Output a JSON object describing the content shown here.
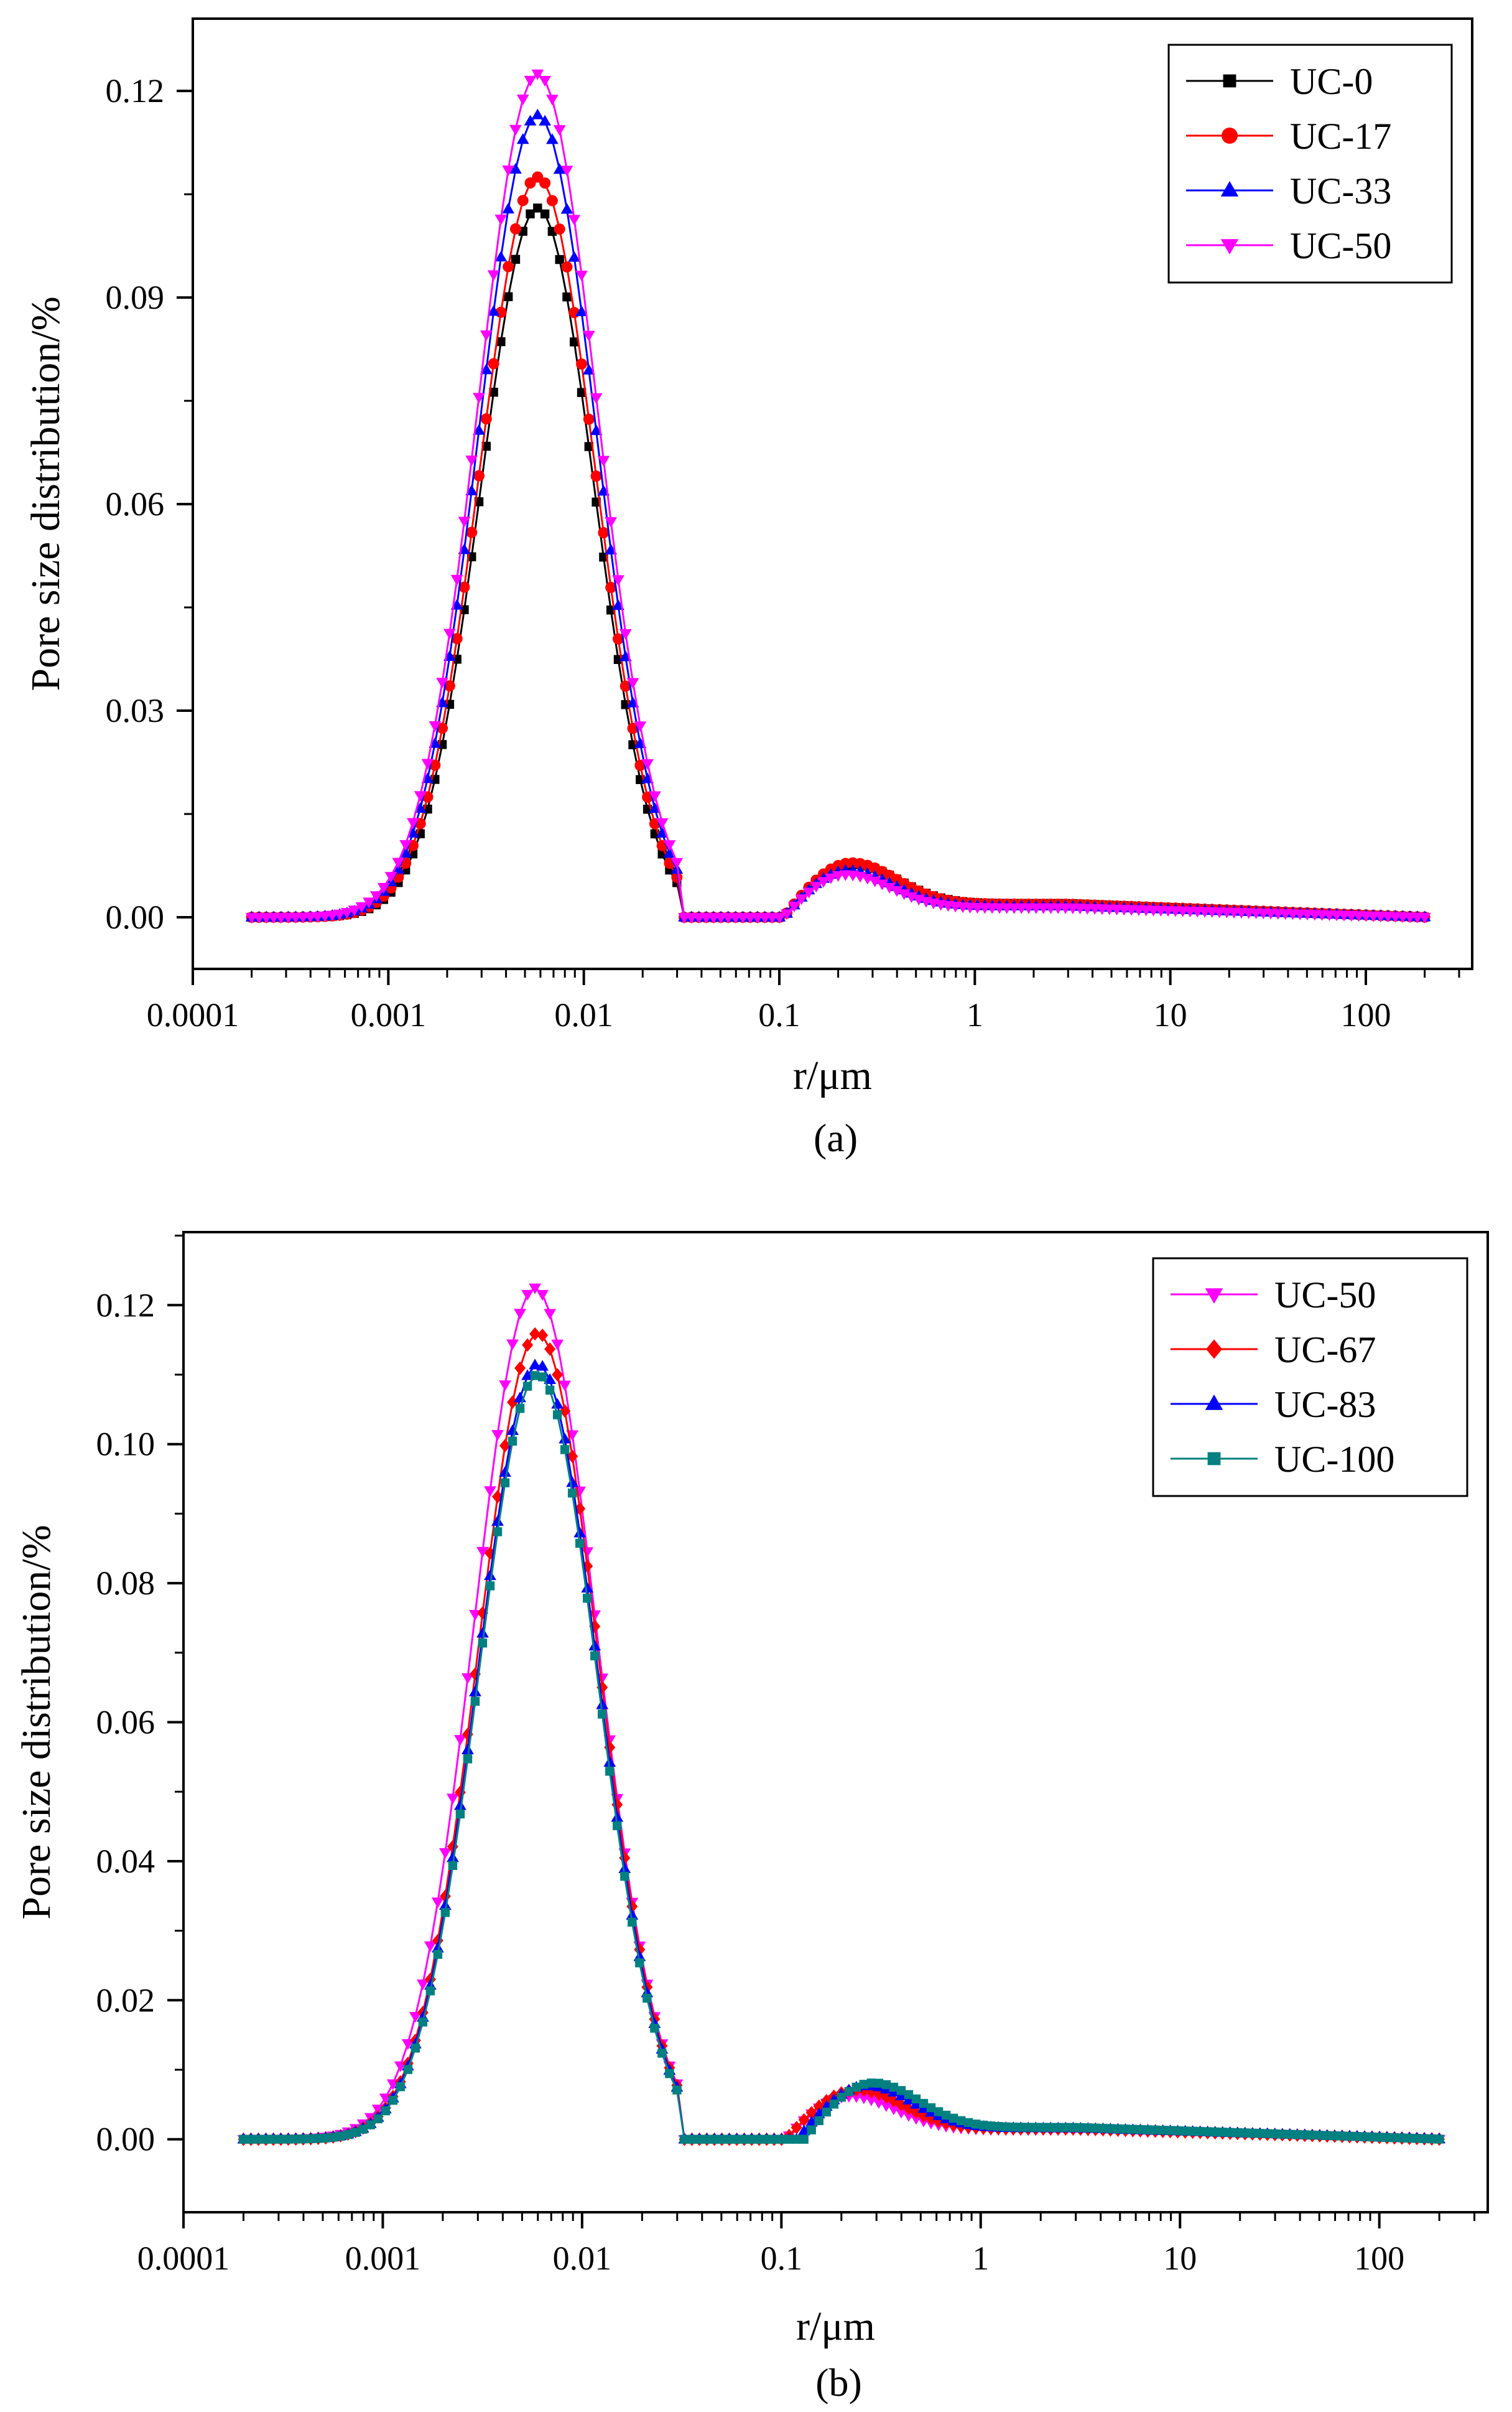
{
  "chart_data": [
    {
      "type": "line",
      "caption": "(a)",
      "xlabel": "r/μm",
      "ylabel": "Pore size distribution/%",
      "xscale": "log",
      "xlim": [
        0.0001,
        350
      ],
      "ylim": [
        -0.0075,
        0.1305
      ],
      "xticks": [
        0.0001,
        0.001,
        0.01,
        0.1,
        1,
        10,
        100
      ],
      "xtick_labels": [
        "0.0001",
        "0.001",
        "0.01",
        "0.1",
        "1",
        "10",
        "100"
      ],
      "yticks": [
        0,
        0.03,
        0.06,
        0.09,
        0.12
      ],
      "ytick_labels": [
        "0.00",
        "0.03",
        "0.06",
        "0.09",
        "0.12"
      ],
      "legend_position": "top-right",
      "series": [
        {
          "name": "UC-0",
          "color": "#000000",
          "marker": "square",
          "peak1": 0.103,
          "peak1_r": 0.0058,
          "peak1_sigma": 0.29,
          "peak2": 0.0077,
          "peak2_r": 0.24,
          "tail": 0.002,
          "onset": 0.105
        },
        {
          "name": "UC-17",
          "color": "#ff0000",
          "marker": "circle",
          "peak1": 0.1075,
          "peak1_r": 0.0058,
          "peak1_sigma": 0.295,
          "peak2": 0.0079,
          "peak2_r": 0.235,
          "tail": 0.0019,
          "onset": 0.105
        },
        {
          "name": "UC-33",
          "color": "#0000ff",
          "marker": "triangle-up",
          "peak1": 0.1165,
          "peak1_r": 0.0058,
          "peak1_sigma": 0.3,
          "peak2": 0.0068,
          "peak2_r": 0.225,
          "tail": 0.0016,
          "onset": 0.105
        },
        {
          "name": "UC-50",
          "color": "#ff00ff",
          "marker": "triangle-down",
          "peak1": 0.1225,
          "peak1_r": 0.0058,
          "peak1_sigma": 0.305,
          "peak2": 0.0062,
          "peak2_r": 0.22,
          "tail": 0.0014,
          "onset": 0.105
        }
      ]
    },
    {
      "type": "line",
      "caption": "(b)",
      "xlabel": "r/μm",
      "ylabel": "Pore size distribution/%",
      "xscale": "log",
      "xlim": [
        0.0001,
        350
      ],
      "ylim": [
        -0.0105,
        0.1305
      ],
      "xticks": [
        0.0001,
        0.001,
        0.01,
        0.1,
        1,
        10,
        100
      ],
      "xtick_labels": [
        "0.0001",
        "0.001",
        "0.01",
        "0.1",
        "1",
        "10",
        "100"
      ],
      "yticks": [
        0,
        0.02,
        0.04,
        0.06,
        0.08,
        0.1,
        0.12
      ],
      "ytick_labels": [
        "0.00",
        "0.02",
        "0.04",
        "0.06",
        "0.08",
        "0.10",
        "0.12"
      ],
      "legend_position": "top-right",
      "series": [
        {
          "name": "UC-50",
          "color": "#ff00ff",
          "marker": "triangle-down",
          "peak1": 0.1225,
          "peak1_r": 0.0058,
          "peak1_sigma": 0.305,
          "peak2": 0.0062,
          "peak2_r": 0.22,
          "tail": 0.0014,
          "onset": 0.105
        },
        {
          "name": "UC-67",
          "color": "#ff0000",
          "marker": "diamond",
          "peak1": 0.116,
          "peak1_r": 0.006,
          "peak1_sigma": 0.3,
          "peak2": 0.0071,
          "peak2_r": 0.24,
          "tail": 0.0015,
          "onset": 0.105
        },
        {
          "name": "UC-83",
          "color": "#0000ff",
          "marker": "triangle-up",
          "peak1": 0.1115,
          "peak1_r": 0.006,
          "peak1_sigma": 0.3,
          "peak2": 0.0077,
          "peak2_r": 0.27,
          "tail": 0.0016,
          "onset": 0.12
        },
        {
          "name": "UC-100",
          "color": "#008080",
          "marker": "square",
          "peak1": 0.11,
          "peak1_r": 0.006,
          "peak1_sigma": 0.298,
          "peak2": 0.0081,
          "peak2_r": 0.29,
          "tail": 0.0017,
          "onset": 0.13
        }
      ]
    }
  ]
}
